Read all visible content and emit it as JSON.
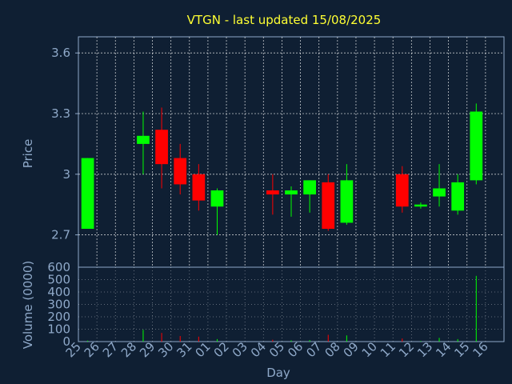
{
  "chart_data": {
    "type": "candlestick",
    "title": "VTGN - last updated 15/08/2025",
    "xlabel": "Day",
    "ylabel": "Price",
    "volume_label": "Volume (0000)",
    "colors": {
      "background": "#0f1f33",
      "up": "#00ff00",
      "down": "#ff0000",
      "title": "#ffff33",
      "text": "#8fa9c9",
      "grid": "#ffffff"
    },
    "x_ticks": [
      "25",
      "26",
      "27",
      "28",
      "29",
      "30",
      "31",
      "01",
      "02",
      "03",
      "04",
      "05",
      "06",
      "07",
      "08",
      "09",
      "10",
      "11",
      "12",
      "13",
      "14",
      "15",
      "16"
    ],
    "price_ticks": [
      "2.7",
      "3",
      "3.3",
      "3.6"
    ],
    "price_tick_values": [
      2.7,
      3.0,
      3.3,
      3.6
    ],
    "ylim": [
      2.54,
      3.68
    ],
    "volume_ticks": [
      "0",
      "100",
      "200",
      "300",
      "400",
      "500",
      "600"
    ],
    "volume_tick_values": [
      0,
      100,
      200,
      300,
      400,
      500,
      600
    ],
    "vol_ylim": [
      0,
      600
    ],
    "grid": true,
    "candles": [
      {
        "day": "25",
        "open": 2.73,
        "high": 3.08,
        "low": 2.73,
        "close": 3.08,
        "volume": 8
      },
      {
        "day": "28",
        "open": 3.15,
        "high": 3.31,
        "low": 3.0,
        "close": 3.19,
        "volume": 95
      },
      {
        "day": "29",
        "open": 3.22,
        "high": 3.33,
        "low": 2.93,
        "close": 3.05,
        "volume": 70
      },
      {
        "day": "30",
        "open": 3.08,
        "high": 3.15,
        "low": 2.9,
        "close": 2.95,
        "volume": 45
      },
      {
        "day": "31",
        "open": 3.0,
        "high": 3.05,
        "low": 2.82,
        "close": 2.87,
        "volume": 40
      },
      {
        "day": "01",
        "open": 2.84,
        "high": 2.93,
        "low": 2.7,
        "close": 2.92,
        "volume": 20
      },
      {
        "day": "04",
        "open": 2.92,
        "high": 3.0,
        "low": 2.8,
        "close": 2.9,
        "volume": 15
      },
      {
        "day": "05",
        "open": 2.9,
        "high": 2.94,
        "low": 2.79,
        "close": 2.92,
        "volume": 10
      },
      {
        "day": "06",
        "open": 2.9,
        "high": 2.97,
        "low": 2.81,
        "close": 2.97,
        "volume": 12
      },
      {
        "day": "07",
        "open": 2.96,
        "high": 3.0,
        "low": 2.72,
        "close": 2.73,
        "volume": 55
      },
      {
        "day": "08",
        "open": 2.76,
        "high": 3.05,
        "low": 2.75,
        "close": 2.97,
        "volume": 50
      },
      {
        "day": "11",
        "open": 3.0,
        "high": 3.04,
        "low": 2.81,
        "close": 2.84,
        "volume": 25
      },
      {
        "day": "12",
        "open": 2.84,
        "high": 2.86,
        "low": 2.83,
        "close": 2.85,
        "volume": 5
      },
      {
        "day": "13",
        "open": 2.89,
        "high": 3.05,
        "low": 2.84,
        "close": 2.93,
        "volume": 30
      },
      {
        "day": "14",
        "open": 2.82,
        "high": 3.0,
        "low": 2.8,
        "close": 2.96,
        "volume": 20
      },
      {
        "day": "15",
        "open": 2.97,
        "high": 3.35,
        "low": 2.95,
        "close": 3.31,
        "volume": 530
      }
    ]
  }
}
